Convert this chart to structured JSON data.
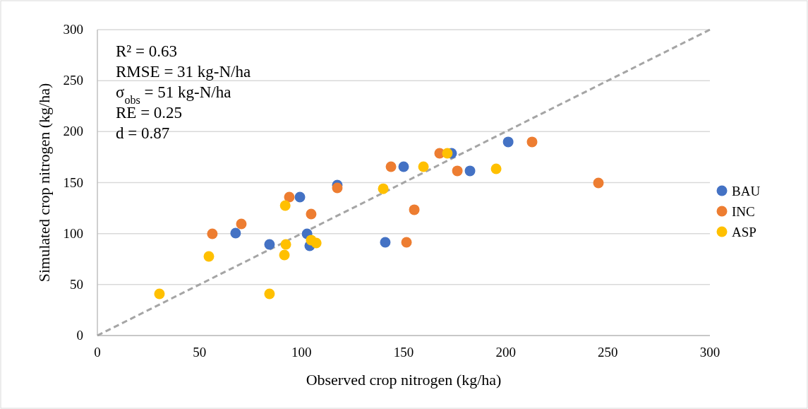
{
  "chart_data": {
    "type": "scatter",
    "xlabel": "Observed crop nitrogen (kg/ha)",
    "ylabel": "Simulated crop nitrogen (kg/ha)",
    "xlim": [
      0,
      300
    ],
    "ylim": [
      0,
      300
    ],
    "xticks": [
      0,
      50,
      100,
      150,
      200,
      250,
      300
    ],
    "yticks": [
      0,
      50,
      100,
      150,
      200,
      250,
      300
    ],
    "grid": "y",
    "legend": "right",
    "marker": "circle",
    "annotations": [
      "R² = 0.63",
      "RMSE = 31 kg-N/ha",
      "σ$_{obs}$ = 51 kg-N/ha",
      "RE = 0.25",
      "d = 0.87"
    ],
    "series": [
      {
        "type": "line",
        "color": "#a5a5a5",
        "line_style": "dashed",
        "marker": "none",
        "x": [
          0,
          300
        ],
        "values": [
          0,
          300
        ]
      },
      {
        "name": "BAU",
        "color": "#4472c4",
        "x": [
          67.7,
          84.3,
          99.2,
          102.7,
          104,
          117.5,
          141,
          150,
          173.5,
          182.5,
          201.2
        ],
        "values": [
          100.5,
          89.4,
          135.8,
          99.8,
          88,
          147.6,
          91.5,
          165.6,
          178.8,
          161.5,
          189.9
        ]
      },
      {
        "name": "INC",
        "color": "#ed7d31",
        "x": [
          56.3,
          70.5,
          94,
          104.7,
          117.5,
          143.8,
          151.4,
          155.2,
          167.6,
          176.3,
          212.9,
          245.4
        ],
        "values": [
          99.8,
          109.5,
          135.8,
          119.2,
          144.8,
          165.6,
          91.5,
          123.4,
          178.8,
          161.5,
          189.9,
          149.7
        ]
      },
      {
        "name": "ASP",
        "color": "#ffc000",
        "x": [
          30.4,
          54.6,
          84.3,
          92.3,
          91.6,
          92,
          104.7,
          107.2,
          140,
          159.7,
          171.4,
          195.3
        ],
        "values": [
          40.9,
          77.6,
          40.9,
          89.4,
          79,
          127.5,
          93.6,
          90.8,
          144,
          165.6,
          178.8,
          163.5
        ]
      }
    ]
  }
}
